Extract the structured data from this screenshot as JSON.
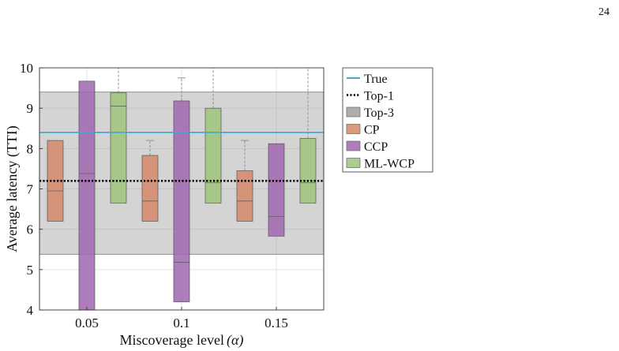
{
  "page": {
    "number": "24"
  },
  "chart_data": {
    "type": "box",
    "xlabel": "Miscoverage level",
    "xlabel_symbol": "(α)",
    "ylabel": "Average latency (TTI)",
    "ylim": [
      4,
      10
    ],
    "y_ticks": [
      "4",
      "5",
      "6",
      "7",
      "8",
      "9",
      "10"
    ],
    "categories": [
      "0.05",
      "0.1",
      "0.15"
    ],
    "grid": true,
    "legend_position": "outside-right",
    "reference_lines": [
      {
        "name": "True",
        "value": 8.4,
        "color": "#3fa9d9",
        "style": "solid"
      },
      {
        "name": "Top-1",
        "value": 7.2,
        "color": "#000000",
        "style": "dotted"
      }
    ],
    "reference_band": {
      "name": "Top-3",
      "low": 5.38,
      "high": 9.4,
      "color": "#a0a0a0"
    },
    "series": [
      {
        "name": "CP",
        "color": "#d5876a",
        "boxes": [
          {
            "category": "0.05",
            "whisker_low": 6.2,
            "q1": 6.2,
            "median": 6.95,
            "q3": 8.2,
            "whisker_high": 8.2
          },
          {
            "category": "0.1",
            "whisker_low": 6.2,
            "q1": 6.2,
            "median": 6.7,
            "q3": 7.83,
            "whisker_high": 8.2
          },
          {
            "category": "0.15",
            "whisker_low": 6.2,
            "q1": 6.2,
            "median": 6.7,
            "q3": 7.45,
            "whisker_high": 8.2
          }
        ]
      },
      {
        "name": "CCP",
        "color": "#a066b0",
        "boxes": [
          {
            "category": "0.05",
            "whisker_low": 4.0,
            "q1": 4.0,
            "median": 7.38,
            "q3": 9.67,
            "whisker_high": 9.67
          },
          {
            "category": "0.1",
            "whisker_low": 4.2,
            "q1": 4.2,
            "median": 5.18,
            "q3": 9.18,
            "whisker_high": 9.75
          },
          {
            "category": "0.15",
            "whisker_low": 5.83,
            "q1": 5.83,
            "median": 6.32,
            "q3": 8.12,
            "whisker_high": 8.12
          }
        ]
      },
      {
        "name": "ML-WCP",
        "color": "#9fc47a",
        "boxes": [
          {
            "category": "0.05",
            "whisker_low": 6.65,
            "q1": 6.65,
            "median": 9.05,
            "q3": 9.38,
            "whisker_high": 10.0
          },
          {
            "category": "0.1",
            "whisker_low": 6.65,
            "q1": 6.65,
            "median": 7.15,
            "q3": 9.0,
            "whisker_high": 10.0
          },
          {
            "category": "0.15",
            "whisker_low": 6.65,
            "q1": 6.65,
            "median": 7.15,
            "q3": 8.25,
            "whisker_high": 10.0
          }
        ]
      }
    ],
    "legend": [
      {
        "label": "True",
        "kind": "line",
        "color": "#3fa9d9"
      },
      {
        "label": "Top-1",
        "kind": "dotted",
        "color": "#000000"
      },
      {
        "label": "Top-3",
        "kind": "patch",
        "color": "#a0a0a0"
      },
      {
        "label": "CP",
        "kind": "patch",
        "color": "#d5876a"
      },
      {
        "label": "CCP",
        "kind": "patch",
        "color": "#a066b0"
      },
      {
        "label": "ML-WCP",
        "kind": "patch",
        "color": "#9fc47a"
      }
    ]
  }
}
